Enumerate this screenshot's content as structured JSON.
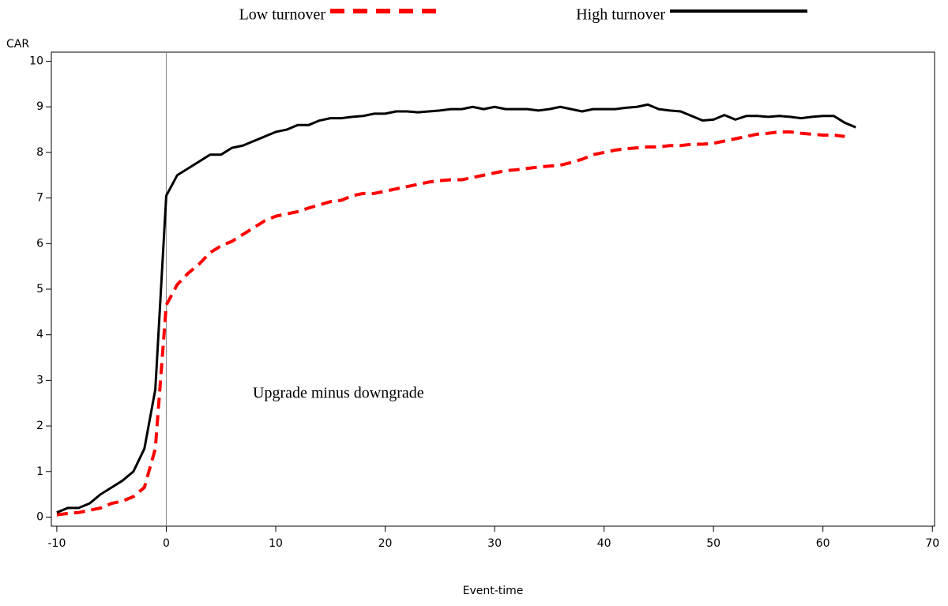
{
  "chart_data": {
    "type": "line",
    "y_label": "CAR",
    "x_label": "Event-time",
    "annotation": "Upgrade minus downgrade",
    "xlim": [
      -10.5,
      70.2
    ],
    "ylim": [
      -0.2,
      10.2
    ],
    "xticks": [
      -10,
      0,
      10,
      20,
      30,
      40,
      50,
      60,
      70
    ],
    "yticks": [
      0,
      1,
      2,
      3,
      4,
      5,
      6,
      7,
      8,
      9,
      10
    ],
    "vline": 0,
    "legend": "top",
    "x": [
      -10,
      -9,
      -8,
      -7,
      -6,
      -5,
      -4,
      -3,
      -2,
      -1,
      0,
      1,
      2,
      3,
      4,
      5,
      6,
      7,
      8,
      9,
      10,
      11,
      12,
      13,
      14,
      15,
      16,
      17,
      18,
      19,
      20,
      21,
      22,
      23,
      24,
      25,
      26,
      27,
      28,
      29,
      30,
      31,
      32,
      33,
      34,
      35,
      36,
      37,
      38,
      39,
      40,
      41,
      42,
      43,
      44,
      45,
      46,
      47,
      48,
      49,
      50,
      51,
      52,
      53,
      54,
      55,
      56,
      57,
      58,
      59,
      60,
      61,
      62,
      63
    ],
    "series": [
      {
        "name": "Low turnover",
        "color": "#ff0000",
        "dashed": true,
        "values": [
          0.05,
          0.08,
          0.1,
          0.15,
          0.2,
          0.3,
          0.35,
          0.45,
          0.65,
          1.5,
          4.65,
          5.1,
          5.35,
          5.55,
          5.8,
          5.95,
          6.05,
          6.2,
          6.35,
          6.5,
          6.6,
          6.65,
          6.7,
          6.78,
          6.85,
          6.92,
          6.95,
          7.05,
          7.1,
          7.1,
          7.15,
          7.2,
          7.25,
          7.3,
          7.35,
          7.38,
          7.4,
          7.4,
          7.45,
          7.5,
          7.55,
          7.6,
          7.62,
          7.65,
          7.68,
          7.7,
          7.72,
          7.78,
          7.85,
          7.95,
          8.0,
          8.05,
          8.08,
          8.1,
          8.12,
          8.12,
          8.15,
          8.15,
          8.18,
          8.18,
          8.2,
          8.25,
          8.3,
          8.35,
          8.4,
          8.42,
          8.45,
          8.45,
          8.42,
          8.4,
          8.38,
          8.38,
          8.35,
          null
        ]
      },
      {
        "name": "High turnover",
        "color": "#000000",
        "dashed": false,
        "values": [
          0.1,
          0.2,
          0.2,
          0.3,
          0.5,
          0.65,
          0.8,
          1.0,
          1.5,
          2.8,
          7.05,
          7.5,
          7.65,
          7.8,
          7.95,
          7.95,
          8.1,
          8.15,
          8.25,
          8.35,
          8.45,
          8.5,
          8.6,
          8.6,
          8.7,
          8.75,
          8.75,
          8.78,
          8.8,
          8.85,
          8.85,
          8.9,
          8.9,
          8.88,
          8.9,
          8.92,
          8.95,
          8.95,
          9.0,
          8.95,
          9.0,
          8.95,
          8.95,
          8.95,
          8.92,
          8.95,
          9.0,
          8.95,
          8.9,
          8.95,
          8.95,
          8.95,
          8.98,
          9.0,
          9.05,
          8.95,
          8.92,
          8.9,
          8.8,
          8.7,
          8.72,
          8.82,
          8.72,
          8.8,
          8.8,
          8.78,
          8.8,
          8.78,
          8.75,
          8.78,
          8.8,
          8.8,
          8.65,
          8.55
        ]
      }
    ]
  }
}
